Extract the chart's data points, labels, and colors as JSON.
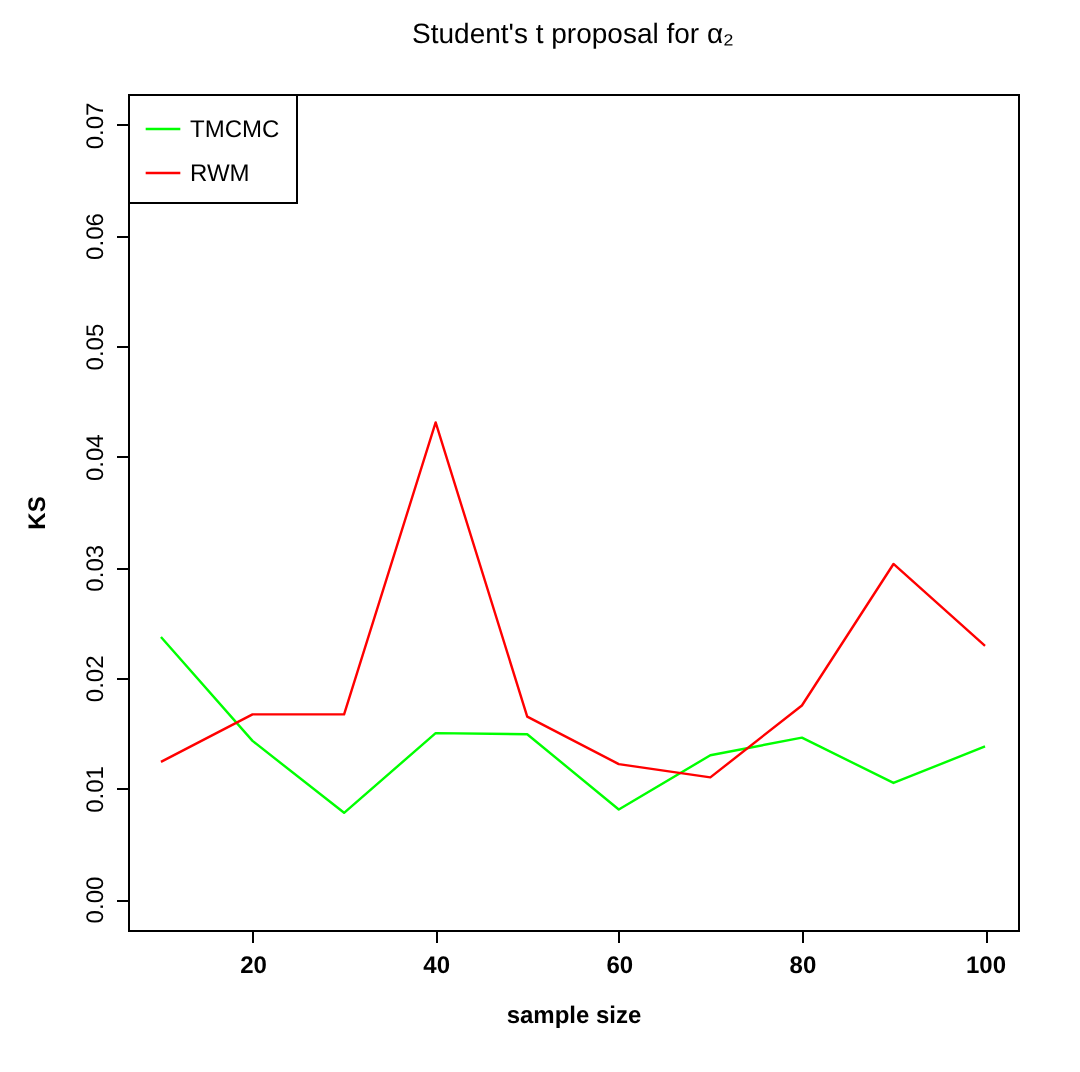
{
  "chart_data": {
    "type": "line",
    "title": "Student's t proposal for α₂",
    "xlabel": "sample size",
    "ylabel": "KS",
    "x": [
      10,
      20,
      30,
      40,
      50,
      60,
      70,
      80,
      90,
      100
    ],
    "series": [
      {
        "name": "TMCMC",
        "color": "#00ff00",
        "values": [
          0.0237,
          0.0143,
          0.0078,
          0.015,
          0.0149,
          0.0081,
          0.013,
          0.0146,
          0.0105,
          0.0138
        ]
      },
      {
        "name": "RWM",
        "color": "#ff0000",
        "values": [
          0.0124,
          0.0167,
          0.0167,
          0.0431,
          0.0165,
          0.0122,
          0.011,
          0.0175,
          0.0303,
          0.0229
        ]
      }
    ],
    "xlim": [
      6.4,
      103.6
    ],
    "xticks": [
      20,
      40,
      60,
      80,
      100
    ],
    "ylim": [
      -0.0028,
      0.0728
    ],
    "yticks": [
      {
        "value": 0,
        "label": "0.00"
      },
      0.01,
      0.02,
      0.03,
      0.04,
      0.05,
      0.06,
      0.07
    ],
    "grid": false,
    "legend": "top left",
    "marker": "none",
    "line_style": "solid"
  }
}
